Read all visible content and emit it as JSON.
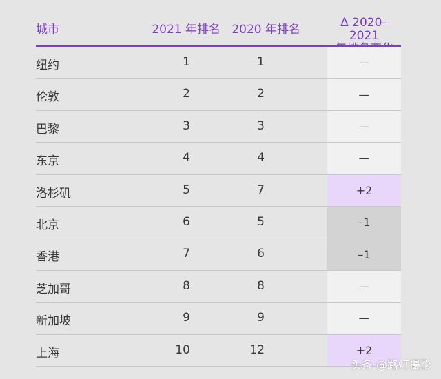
{
  "header": {
    "city": "城市",
    "rank_2021": "2021 年排名",
    "rank_2020": "2020 年排名",
    "change_line1": "Δ 2020–2021",
    "change_line2": "年排名变化"
  },
  "rows": [
    {
      "city": "纽约",
      "r2021": "1",
      "r2020": "1",
      "change": "—",
      "status": "same"
    },
    {
      "city": "伦敦",
      "r2021": "2",
      "r2020": "2",
      "change": "—",
      "status": "same"
    },
    {
      "city": "巴黎",
      "r2021": "3",
      "r2020": "3",
      "change": "—",
      "status": "same"
    },
    {
      "city": "东京",
      "r2021": "4",
      "r2020": "4",
      "change": "—",
      "status": "same"
    },
    {
      "city": "洛杉矶",
      "r2021": "5",
      "r2020": "7",
      "change": "+2",
      "status": "up"
    },
    {
      "city": "北京",
      "r2021": "6",
      "r2020": "5",
      "change": "–1",
      "status": "down"
    },
    {
      "city": "香港",
      "r2021": "7",
      "r2020": "6",
      "change": "–1",
      "status": "down"
    },
    {
      "city": "芝加哥",
      "r2021": "8",
      "r2020": "8",
      "change": "—",
      "status": "same"
    },
    {
      "city": "新加坡",
      "r2021": "9",
      "r2020": "9",
      "change": "—",
      "status": "same"
    },
    {
      "city": "上海",
      "r2021": "10",
      "r2020": "12",
      "change": "+2",
      "status": "up"
    }
  ],
  "colors": {
    "accent": "#7a3fc4",
    "same_bg": "#f1f1f1",
    "up_bg": "#e8d7fa",
    "down_bg": "#d3d3d3"
  },
  "watermark": "头条 @路灯摄影"
}
